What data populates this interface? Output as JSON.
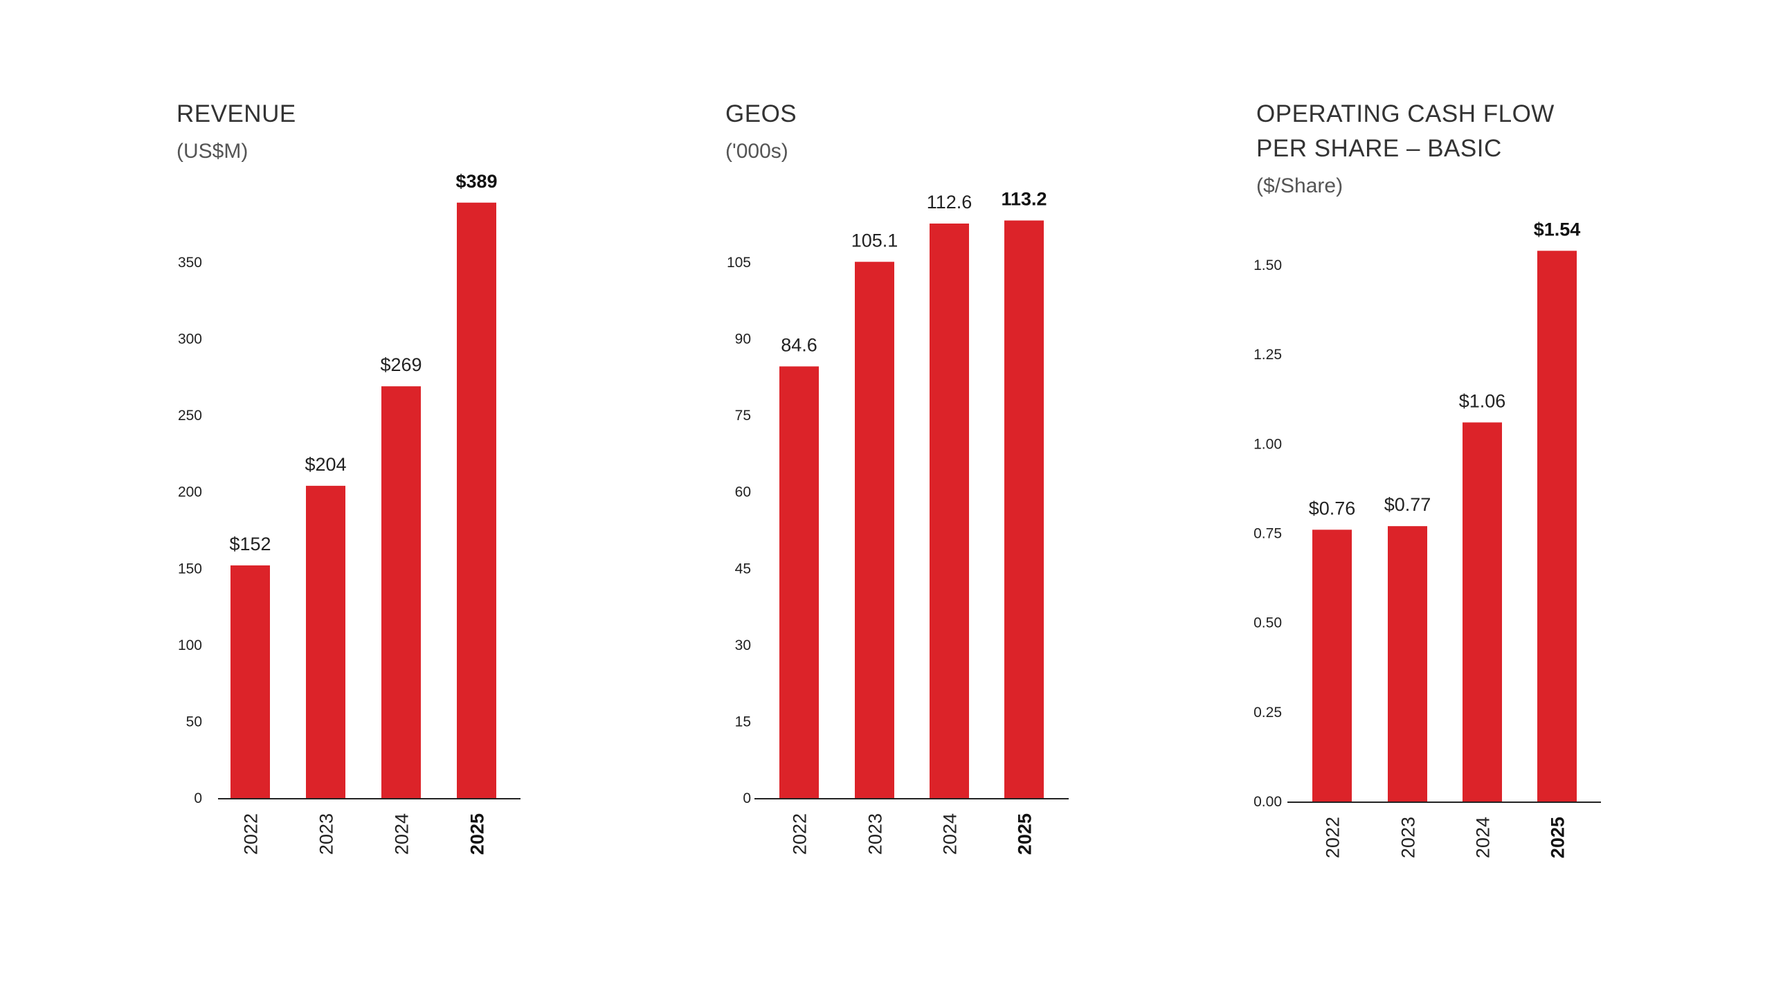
{
  "colors": {
    "bar": "#dc2329",
    "axis": "#222222",
    "text": "#222222"
  },
  "chart_data": [
    {
      "type": "bar",
      "title_lines": [
        "REVENUE"
      ],
      "unit": "(US$M)",
      "categories": [
        "2022",
        "2023",
        "2024",
        "2025"
      ],
      "values": [
        152,
        204,
        269,
        389
      ],
      "value_labels": [
        "$152",
        "$204",
        "$269",
        "$389"
      ],
      "highlight_index": 3,
      "yticks": [
        0,
        50,
        100,
        150,
        200,
        250,
        300,
        350
      ],
      "ytick_labels": [
        "0",
        "50",
        "100",
        "150",
        "200",
        "250",
        "300",
        "350"
      ],
      "ylim": [
        0,
        350
      ],
      "xlabel": "",
      "ylabel": ""
    },
    {
      "type": "bar",
      "title_lines": [
        "GEOS"
      ],
      "unit": "('000s)",
      "categories": [
        "2022",
        "2023",
        "2024",
        "2025"
      ],
      "values": [
        84.6,
        105.1,
        112.6,
        113.2
      ],
      "value_labels": [
        "84.6",
        "105.1",
        "112.6",
        "113.2"
      ],
      "highlight_index": 3,
      "yticks": [
        0,
        15,
        30,
        45,
        60,
        75,
        90,
        105
      ],
      "ytick_labels": [
        "0",
        "15",
        "30",
        "45",
        "60",
        "75",
        "90",
        "105"
      ],
      "ylim": [
        0,
        105
      ],
      "xlabel": "",
      "ylabel": ""
    },
    {
      "type": "bar",
      "title_lines": [
        "OPERATING CASH FLOW",
        "PER SHARE – BASIC"
      ],
      "unit": "($/Share)",
      "categories": [
        "2022",
        "2023",
        "2024",
        "2025"
      ],
      "values": [
        0.76,
        0.77,
        1.06,
        1.54
      ],
      "value_labels": [
        "$0.76",
        "$0.77",
        "$1.06",
        "$1.54"
      ],
      "highlight_index": 3,
      "yticks": [
        0,
        0.25,
        0.5,
        0.75,
        1.0,
        1.25,
        1.5
      ],
      "ytick_labels": [
        "0.00",
        "0.25",
        "0.50",
        "0.75",
        "1.00",
        "1.25",
        "1.50"
      ],
      "ylim": [
        0,
        1.5
      ],
      "xlabel": "",
      "ylabel": ""
    }
  ]
}
